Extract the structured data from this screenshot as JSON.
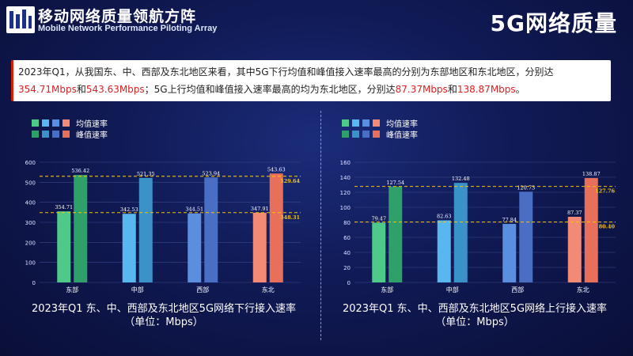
{
  "header": {
    "brand_title": "移动网络质量领航方阵",
    "brand_subtitle": "Mobile Network Performance Piloting Array",
    "page_title": "5G网络质量"
  },
  "summary": {
    "p1": "2023年Q1，从我国东、中、西部及东北地区来看，其中5G下行均值和峰值接入速率最高的分别为东部地区和东北地区，分别达",
    "v1": "354.71Mbps",
    "p2": "和",
    "v2": "543.63Mbps",
    "p3": "；5G上行均值和峰值接入速率最高的均为东北地区，分别达",
    "v3": "87.37Mbps",
    "p4": "和",
    "v4": "138.87Mbps",
    "p5": "。"
  },
  "legend": {
    "avg_label": "均值速率",
    "peak_label": "峰值速率",
    "avg_colors": [
      "#4fc98a",
      "#59b7ef",
      "#5a8fe0",
      "#f28a76"
    ],
    "peak_colors": [
      "#2fa06a",
      "#3a92c8",
      "#4a6ec4",
      "#e8705a"
    ]
  },
  "chart_data": [
    {
      "type": "bar",
      "categories": [
        "东部",
        "中部",
        "西部",
        "东北"
      ],
      "series": [
        {
          "name": "均值速率",
          "values": [
            354.71,
            342.53,
            344.51,
            347.91
          ]
        },
        {
          "name": "峰值速率",
          "values": [
            536.42,
            521.35,
            523.94,
            543.63
          ]
        }
      ],
      "value_labels": {
        "avg": [
          "354.71",
          "342.53",
          "344.51",
          "347.91"
        ],
        "peak": [
          "536.42",
          "521.35",
          "523.94",
          "543.63"
        ]
      },
      "reference_lines": [
        {
          "value": 529.64,
          "label": "529.64"
        },
        {
          "value": 348.31,
          "label": "348.31"
        }
      ],
      "ylim": [
        0,
        600
      ],
      "yticks": [
        0,
        100,
        200,
        300,
        400,
        500,
        600
      ],
      "ytick_labels": [
        "0",
        "100",
        "200",
        "300",
        "400",
        "500",
        "600"
      ],
      "grid": true,
      "title": "2023年Q1 东、中、西部及东北地区5G网络下行接入速率",
      "subtitle": "（单位：Mbps）"
    },
    {
      "type": "bar",
      "categories": [
        "东部",
        "中部",
        "西部",
        "东北"
      ],
      "series": [
        {
          "name": "均值速率",
          "values": [
            79.47,
            82.63,
            77.84,
            87.37
          ]
        },
        {
          "name": "峰值速率",
          "values": [
            127.54,
            132.48,
            120.73,
            138.87
          ]
        }
      ],
      "value_labels": {
        "avg": [
          "79.47",
          "82.63",
          "77.84",
          "87.37"
        ],
        "peak": [
          "127.54",
          "132.48",
          "120.73",
          "138.87"
        ]
      },
      "reference_lines": [
        {
          "value": 127.76,
          "label": "127.76"
        },
        {
          "value": 80.4,
          "label": "80.40"
        }
      ],
      "ylim": [
        0,
        160
      ],
      "yticks": [
        0,
        20,
        40,
        60,
        80,
        100,
        120,
        140,
        160
      ],
      "ytick_labels": [
        "0",
        "20",
        "40",
        "60",
        "80",
        "100",
        "120",
        "140",
        "160"
      ],
      "grid": true,
      "title": "2023年Q1 东、中、西部及东北地区5G网络上行接入速率",
      "subtitle": "（单位：Mbps）"
    }
  ]
}
